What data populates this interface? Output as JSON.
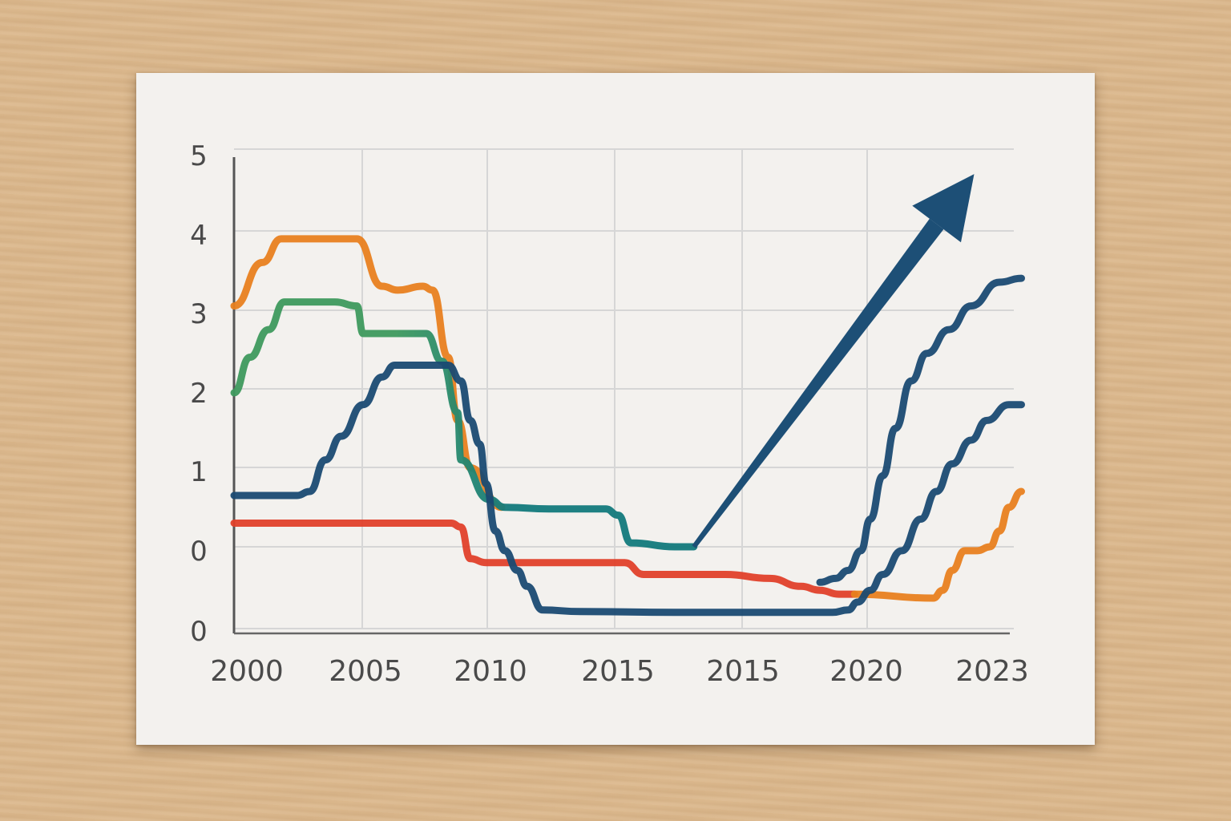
{
  "chart_data": {
    "type": "line",
    "title": "",
    "xlabel": "",
    "ylabel": "",
    "x_tick_labels": [
      "2000",
      "2005",
      "2010",
      "2015",
      "2015",
      "2020",
      "2023"
    ],
    "y_tick_labels": [
      "0",
      "0",
      "1",
      "2",
      "3",
      "4",
      "5"
    ],
    "grid": true,
    "legend": "none",
    "series": [
      {
        "color": "#e8801f",
        "points": [
          [
            0,
            3.05
          ],
          [
            0.45,
            3.6
          ],
          [
            0.75,
            3.9
          ],
          [
            1.5,
            3.9
          ],
          [
            1.95,
            3.9
          ],
          [
            2.35,
            3.3
          ],
          [
            2.6,
            3.25
          ],
          [
            3.0,
            3.3
          ],
          [
            3.15,
            3.25
          ],
          [
            3.4,
            2.4
          ],
          [
            3.55,
            1.6
          ],
          [
            3.75,
            1.0
          ],
          [
            4.25,
            0.5
          ]
        ]
      },
      {
        "color": "#3f9a5e",
        "end_color": "#137a7c",
        "points": [
          [
            0,
            1.95
          ],
          [
            0.25,
            2.4
          ],
          [
            0.55,
            2.75
          ],
          [
            0.8,
            3.1
          ],
          [
            1.6,
            3.1
          ],
          [
            1.95,
            3.05
          ],
          [
            2.05,
            2.7
          ],
          [
            2.4,
            2.7
          ],
          [
            3.05,
            2.7
          ],
          [
            3.3,
            2.35
          ],
          [
            3.55,
            1.7
          ],
          [
            3.6,
            1.1
          ],
          [
            4.05,
            0.6
          ],
          [
            4.3,
            0.5
          ],
          [
            5.0,
            0.48
          ],
          [
            5.9,
            0.48
          ],
          [
            6.1,
            0.4
          ],
          [
            6.3,
            0.05
          ],
          [
            7.0,
            0.0
          ],
          [
            7.3,
            0.0
          ]
        ]
      },
      {
        "color": "#e0402a",
        "points": [
          [
            0,
            0.3
          ],
          [
            2.0,
            0.3
          ],
          [
            3.45,
            0.3
          ],
          [
            3.6,
            0.25
          ],
          [
            3.75,
            -0.15
          ],
          [
            4.0,
            -0.2
          ],
          [
            5.5,
            -0.2
          ],
          [
            6.2,
            -0.2
          ],
          [
            6.5,
            -0.35
          ],
          [
            7.8,
            -0.35
          ],
          [
            8.5,
            -0.4
          ],
          [
            9.0,
            -0.5
          ],
          [
            9.3,
            -0.55
          ],
          [
            9.6,
            -0.6
          ],
          [
            9.85,
            -0.6
          ]
        ]
      },
      {
        "color": "#e8801f",
        "points": [
          [
            9.85,
            -0.6
          ],
          [
            11.1,
            -0.65
          ],
          [
            11.25,
            -0.55
          ],
          [
            11.4,
            -0.3
          ],
          [
            11.6,
            -0.05
          ],
          [
            11.8,
            -0.05
          ],
          [
            12.0,
            0.0
          ],
          [
            12.15,
            0.2
          ],
          [
            12.3,
            0.5
          ],
          [
            12.5,
            0.7
          ]
        ]
      },
      {
        "color": "#1a4a72",
        "points": [
          [
            0,
            0.65
          ],
          [
            1.0,
            0.65
          ],
          [
            1.2,
            0.7
          ],
          [
            1.45,
            1.1
          ],
          [
            1.7,
            1.4
          ],
          [
            2.05,
            1.8
          ],
          [
            2.35,
            2.15
          ],
          [
            2.55,
            2.3
          ],
          [
            3.4,
            2.3
          ],
          [
            3.6,
            2.1
          ],
          [
            3.75,
            1.6
          ],
          [
            3.9,
            1.3
          ],
          [
            4.0,
            0.8
          ],
          [
            4.15,
            0.2
          ],
          [
            4.3,
            -0.05
          ],
          [
            4.5,
            -0.3
          ],
          [
            4.65,
            -0.5
          ],
          [
            4.9,
            -0.8
          ],
          [
            5.5,
            -0.82
          ],
          [
            7.0,
            -0.83
          ],
          [
            9.5,
            -0.83
          ],
          [
            9.75,
            -0.8
          ],
          [
            9.9,
            -0.7
          ],
          [
            10.1,
            -0.55
          ],
          [
            10.3,
            -0.35
          ],
          [
            10.6,
            -0.05
          ],
          [
            10.9,
            0.35
          ],
          [
            11.15,
            0.7
          ],
          [
            11.4,
            1.05
          ],
          [
            11.7,
            1.35
          ],
          [
            11.95,
            1.6
          ],
          [
            12.3,
            1.8
          ],
          [
            12.5,
            1.8
          ]
        ]
      },
      {
        "color": "#1a4a72",
        "points": [
          [
            9.3,
            -0.45
          ],
          [
            9.55,
            -0.4
          ],
          [
            9.75,
            -0.3
          ],
          [
            9.95,
            -0.05
          ],
          [
            10.1,
            0.35
          ],
          [
            10.3,
            0.9
          ],
          [
            10.5,
            1.5
          ],
          [
            10.75,
            2.1
          ],
          [
            11.0,
            2.45
          ],
          [
            11.35,
            2.75
          ],
          [
            11.7,
            3.05
          ],
          [
            12.15,
            3.35
          ],
          [
            12.5,
            3.4
          ]
        ]
      }
    ],
    "arrow": {
      "color": "#1d4f76",
      "from": [
        7.3,
        0.0
      ],
      "to": [
        11.75,
        4.72
      ]
    }
  }
}
